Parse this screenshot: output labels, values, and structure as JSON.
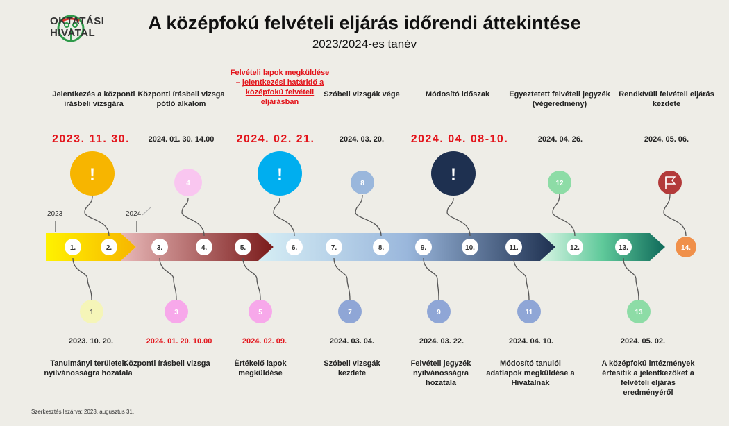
{
  "header": {
    "logo_line1": "OKTATÁSI",
    "logo_line2": "HIVATAL",
    "title": "A középfokú felvételi eljárás időrendi áttekintése",
    "subtitle": "2023/2024-es tanév"
  },
  "years": {
    "y2023": "2023",
    "y2024": "2024"
  },
  "top_events": [
    {
      "label": "Jelentkezés a központi írásbeli vizsgára",
      "date": "2023. 11. 30."
    },
    {
      "label": "Központi írásbeli vizsga pótló alkalom",
      "date": "2024. 01. 30. 14.00"
    },
    {
      "label_a": "Felvételi lapok megküldése –",
      "label_b": "jelentkezési határidő a középfokú felvételi eljárásban",
      "date": "2024. 02. 21."
    },
    {
      "label": "Szóbeli vizsgák vége",
      "date": "2024. 03. 20."
    },
    {
      "label": "Módosító időszak",
      "date": "2024. 04. 08-10."
    },
    {
      "label": "Egyeztetett felvételi jegyzék (végeredmény)",
      "date": "2024. 04. 26."
    },
    {
      "label": "Rendkívüli felvételi eljárás kezdete",
      "date": "2024. 05. 06."
    }
  ],
  "bottom_events": [
    {
      "date": "2023. 10. 20.",
      "label": "Tanulmányi területek nyilvánosságra hozatala"
    },
    {
      "date": "2024. 01. 20. 10.00",
      "label": "Központi írásbeli vizsga"
    },
    {
      "date": "2024. 02. 09.",
      "label": "Értékelő lapok megküldése"
    },
    {
      "date": "2024. 03. 04.",
      "label": "Szóbeli vizsgák kezdete"
    },
    {
      "date": "2024. 03. 22.",
      "label": "Felvételi jegyzék nyilvánosságra hozatala"
    },
    {
      "date": "2024. 04. 10.",
      "label": "Módosító tanulói adatlapok megküldése a Hivatalnak"
    },
    {
      "date": "2024. 05. 02.",
      "label": "A középfokú intézmények értesítik a jelentkezőket a felvételi eljárás eredményéről"
    }
  ],
  "markers": {
    "top": [
      "!",
      "4",
      "!",
      "8",
      "!",
      "12",
      "flag-icon"
    ],
    "bottom": [
      "1",
      "3",
      "5",
      "7",
      "9",
      "11",
      "13"
    ]
  },
  "steps": [
    "1.",
    "2.",
    "3.",
    "4.",
    "5.",
    "6.",
    "7.",
    "8.",
    "9.",
    "10.",
    "11.",
    "12.",
    "13.",
    "14."
  ],
  "colors": {
    "urgent_yellow": "#f7b500",
    "urgent_cyan": "#00aeef",
    "urgent_navy": "#1e3050",
    "red_text": "#e3141b",
    "flag_marker": "#b33a3a",
    "final_step": "#f0904a"
  },
  "footer": "Szerkesztés lezárva: 2023. augusztus 31."
}
